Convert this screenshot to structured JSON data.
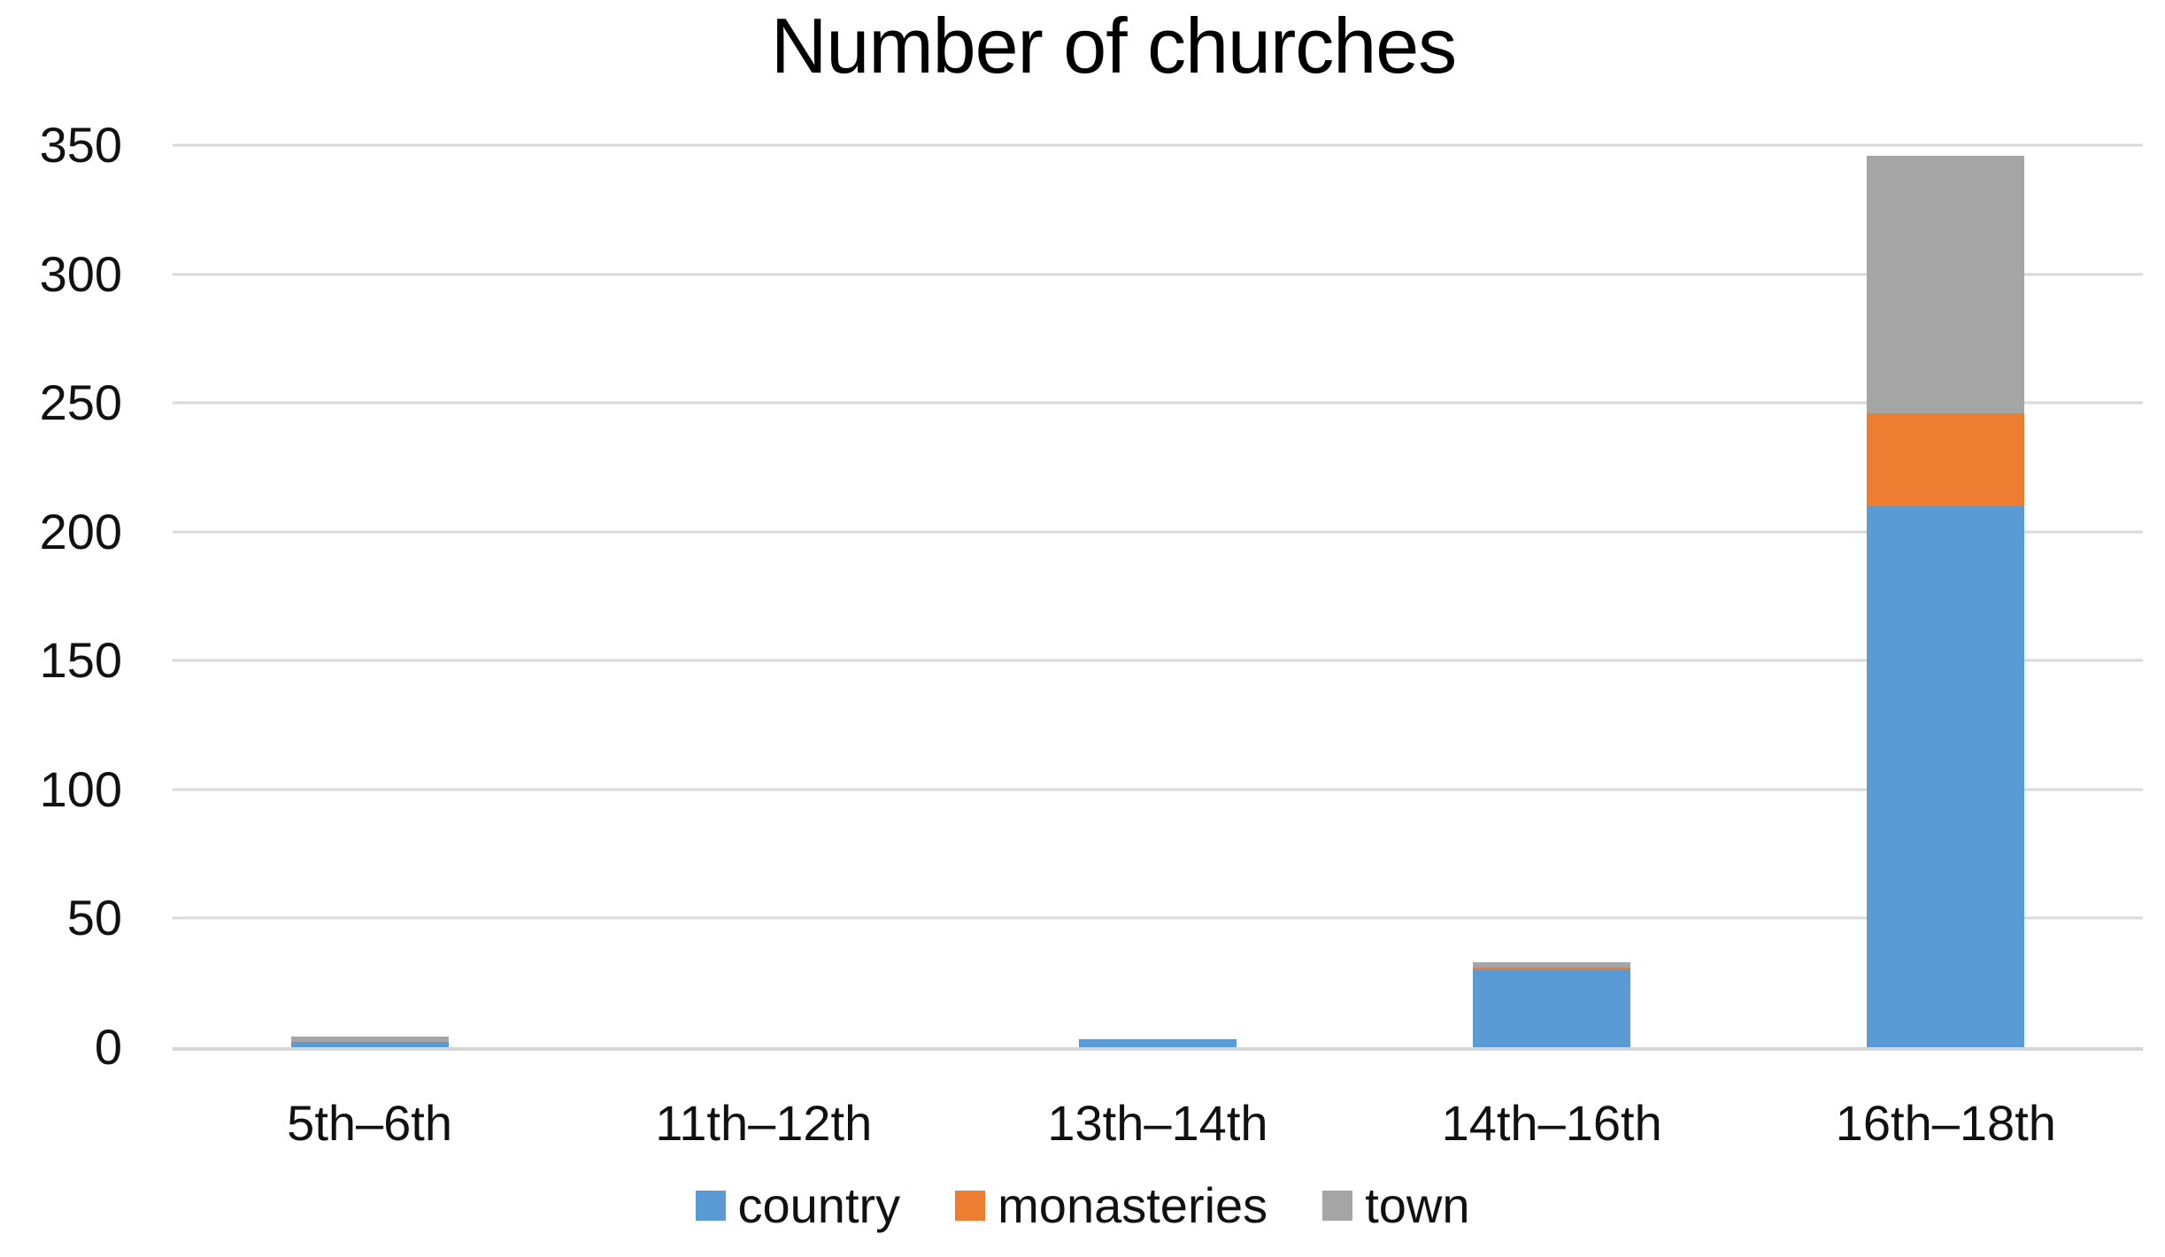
{
  "chart_data": {
    "type": "bar",
    "stacked": true,
    "title": "Number of churches",
    "categories": [
      "5th–6th",
      "11th–12th",
      "13th–14th",
      "14th–16th",
      "16th–18th"
    ],
    "series": [
      {
        "name": "country",
        "color": "#5B9BD5",
        "values": [
          2,
          0,
          3,
          30,
          210
        ]
      },
      {
        "name": "monasteries",
        "color": "#ED7D31",
        "values": [
          0,
          0,
          0,
          1,
          36
        ]
      },
      {
        "name": "town",
        "color": "#A5A5A5",
        "values": [
          2,
          0,
          0,
          2,
          100
        ]
      }
    ],
    "totals": [
      4,
      0,
      3,
      33,
      346
    ],
    "xlabel": "",
    "ylabel": "",
    "ylim": [
      0,
      350
    ],
    "yticks": [
      0,
      50,
      100,
      150,
      200,
      250,
      300,
      350
    ],
    "grid": "horizontal",
    "legend_position": "bottom",
    "background_color": "#ffffff",
    "gridline_color": "#d9d9d9",
    "text_color": "#111111"
  }
}
